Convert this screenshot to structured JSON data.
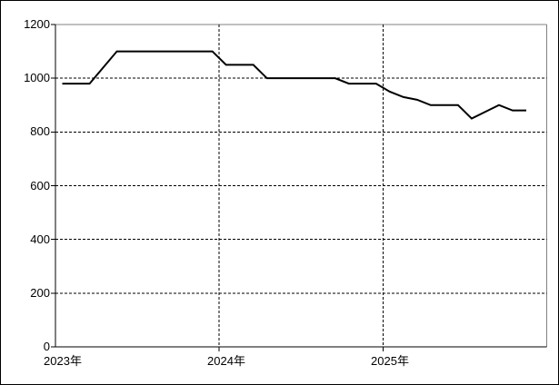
{
  "page": {
    "background_color": "#ffffff",
    "outer_border_color": "#000000"
  },
  "chart_data": {
    "type": "line",
    "title": "",
    "legend": false,
    "grid": {
      "style": "dashed",
      "color": "#000000"
    },
    "plot_border_color": "#808080",
    "axis_color": "#000000",
    "line_color": "#000000",
    "line_width": 2,
    "categories": [
      "2023-01",
      "2023-02",
      "2023-03",
      "2023-04",
      "2023-05",
      "2023-06",
      "2023-07",
      "2023-08",
      "2023-09",
      "2023-10",
      "2023-11",
      "2023-12",
      "2024-01",
      "2024-02",
      "2024-03",
      "2024-04",
      "2024-05",
      "2024-06",
      "2024-07",
      "2024-08",
      "2024-09",
      "2024-10",
      "2024-11",
      "2024-12",
      "2025-01",
      "2025-02",
      "2025-03",
      "2025-04",
      "2025-05",
      "2025-06",
      "2025-07",
      "2025-08",
      "2025-09",
      "2025-10",
      "2025-11",
      "2025-12"
    ],
    "series": [
      {
        "name": "values",
        "values": [
          980,
          980,
          980,
          1040,
          1100,
          1100,
          1100,
          1100,
          1100,
          1100,
          1100,
          1100,
          1050,
          1050,
          1050,
          1000,
          1000,
          1000,
          1000,
          1000,
          1000,
          980,
          980,
          980,
          950,
          930,
          920,
          900,
          900,
          900,
          850,
          875,
          900,
          880,
          880,
          null
        ]
      }
    ],
    "y_axis": {
      "min": 0,
      "max": 1200,
      "tick_interval": 200,
      "tick_labels": [
        "0",
        "200",
        "400",
        "600",
        "800",
        "1000",
        "1200"
      ]
    },
    "x_axis": {
      "tick_labels": [
        "2023年",
        "2024年",
        "2025年"
      ],
      "tick_category_index": [
        0,
        12,
        24
      ]
    }
  }
}
